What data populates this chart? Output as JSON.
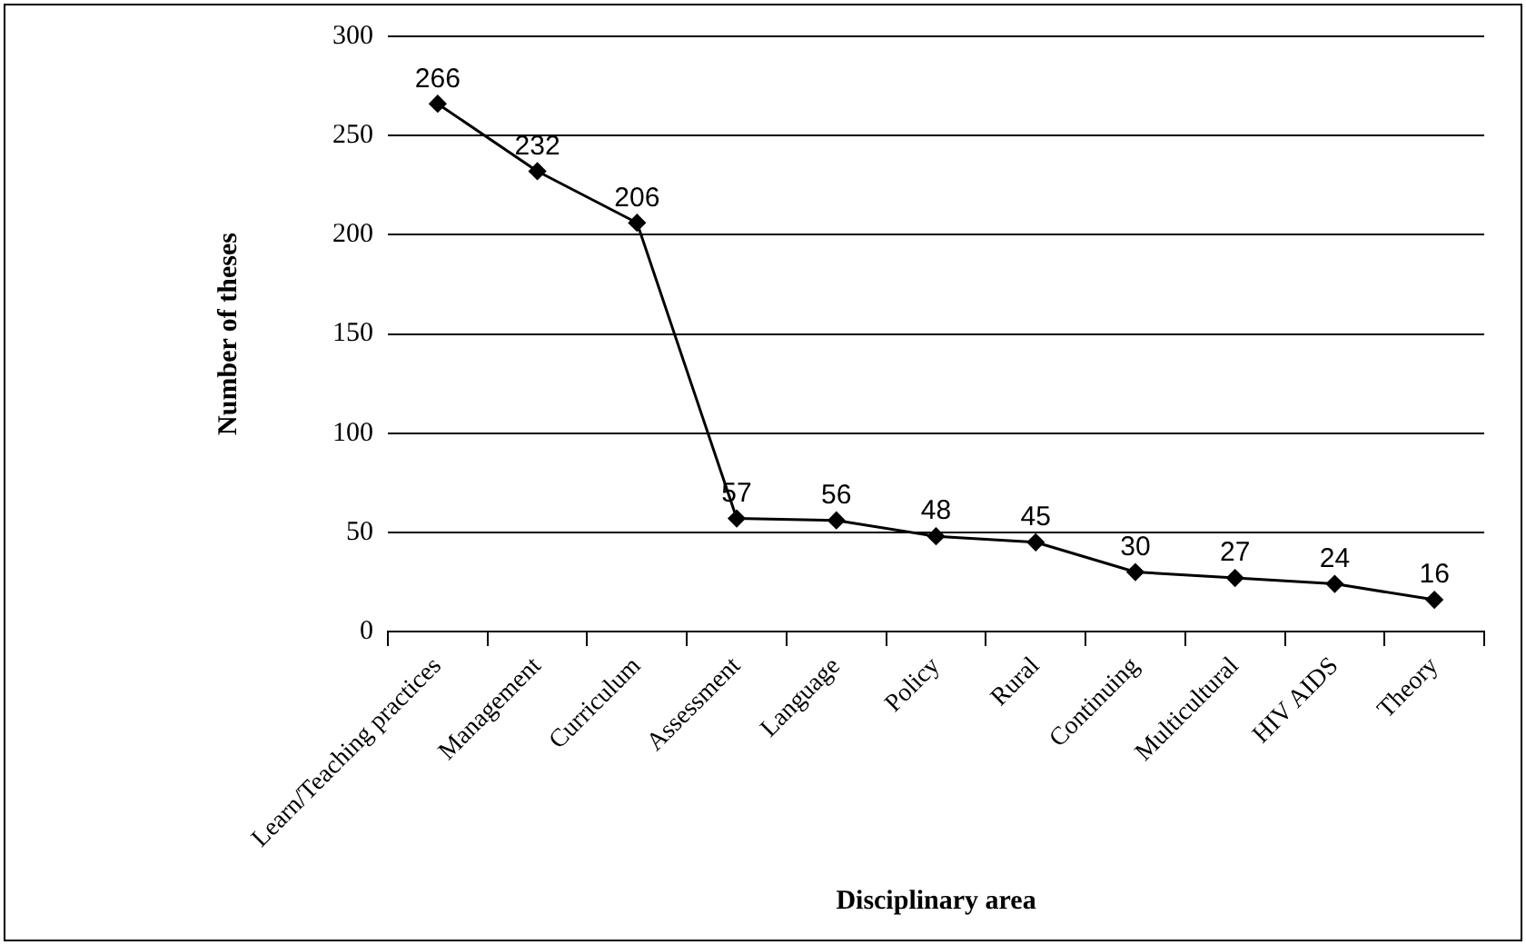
{
  "chart_data": {
    "type": "line",
    "xlabel": "Disciplinary area",
    "ylabel": "Number of theses",
    "categories": [
      "Learn/Teaching practices",
      "Management",
      "Curriculum",
      "Assessment",
      "Language",
      "Policy",
      "Rural",
      "Continuing",
      "Multicultural",
      "HIV AIDS",
      "Theory"
    ],
    "values": [
      266,
      232,
      206,
      57,
      56,
      48,
      45,
      30,
      27,
      24,
      16
    ],
    "color": "#000000",
    "marker": "diamond",
    "line_style": "solid",
    "ylim": [
      0,
      300
    ],
    "yticks": [
      0,
      50,
      100,
      150,
      200,
      250,
      300
    ],
    "grid": "y",
    "legend": false,
    "data_labels": true
  }
}
